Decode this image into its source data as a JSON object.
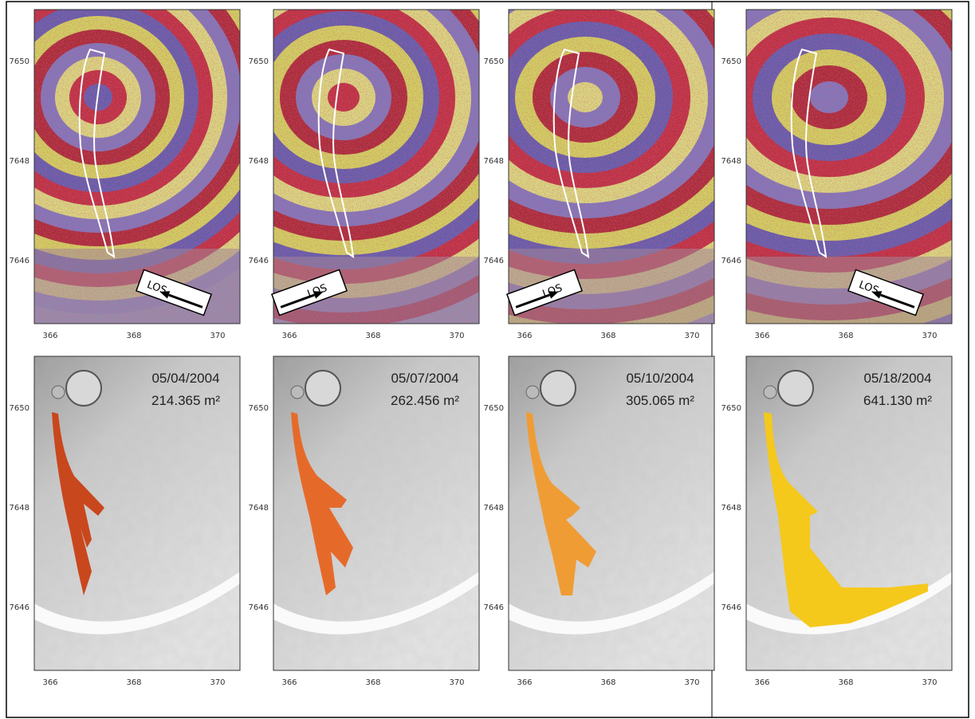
{
  "axes": {
    "xticks": [
      "366",
      "368",
      "370"
    ],
    "yticks": [
      "7650",
      "7648",
      "7646"
    ]
  },
  "interferograms": [
    {
      "los": "LOS"
    },
    {
      "los": "LOS"
    },
    {
      "los": "LOS"
    },
    {
      "los": "LOS"
    }
  ],
  "flows": [
    {
      "date": "05/04/2004",
      "area": "214.365 m²"
    },
    {
      "date": "05/07/2004",
      "area": "262.456 m²"
    },
    {
      "date": "05/10/2004",
      "area": "305.065 m²"
    },
    {
      "date": "05/18/2004",
      "area": "641.130 m²"
    }
  ]
}
